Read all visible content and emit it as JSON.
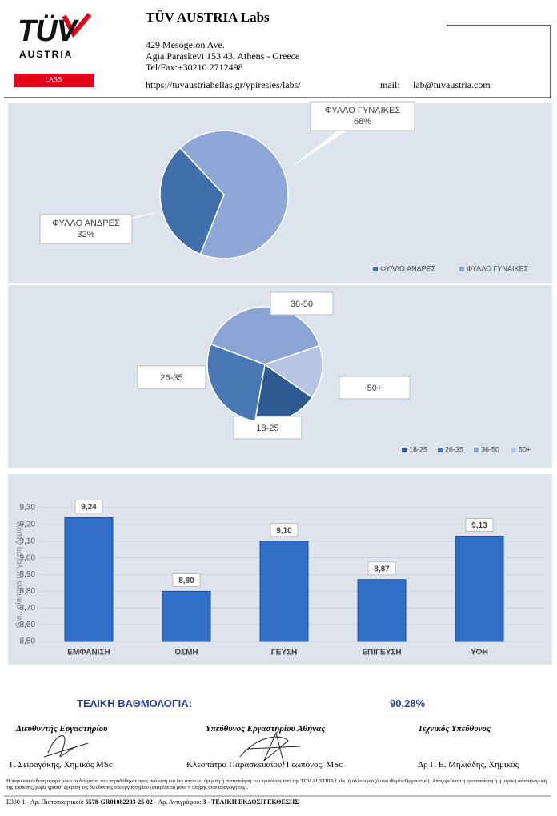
{
  "header": {
    "logo": {
      "brand": "TÜV",
      "sub": "AUSTRIA",
      "badge": "LABS"
    },
    "title": "TÜV AUSTRIA Labs",
    "address": [
      "429 Mesogeion Ave.",
      "Agia Paraskevi 153 43, Athens - Greece",
      "Tel/Fax:+30210 2712498"
    ],
    "url": "https://tuvaustriahellas.gr/ypiresies/labs/",
    "mail_label": "mail:",
    "mail": "lab@tuvaustria.com"
  },
  "chart_data": [
    {
      "type": "pie",
      "categories": [
        "ΦΥΛΛΟ ΑΝΔΡΕΣ",
        "ΦΥΛΛΟ ΓΥΝΑΙΚΕΣ"
      ],
      "values": [
        32,
        68
      ],
      "value_labels": [
        "32%",
        "68%"
      ],
      "colors": [
        "#416fa9",
        "#8ea7d6"
      ],
      "legend": "bottom-right"
    },
    {
      "type": "pie",
      "categories": [
        "18-25",
        "26-35",
        "36-50",
        "50+"
      ],
      "values": [
        18,
        28,
        39,
        15
      ],
      "colors": [
        "#2f5b93",
        "#4977b4",
        "#8ba4d3",
        "#b7c4e3"
      ],
      "legend": "bottom-right"
    },
    {
      "type": "bar",
      "categories": [
        "ΕΜΦΑΝΙΣΗ",
        "ΟΣΜΗ",
        "ΓΕΥΣΗ",
        "ΕΠΙΓΕΥΣΗ",
        "ΥΦΗ"
      ],
      "values": [
        9.24,
        8.8,
        9.1,
        8.87,
        9.13
      ],
      "value_labels": [
        "9,24",
        "8,80",
        "9,10",
        "8,87",
        "9,13"
      ],
      "color": "#2f6fc8",
      "y_label": "Gia...giannas με γεύση Λεμόνι",
      "ylim": [
        8.5,
        9.3
      ],
      "yticks": [
        {
          "value": 8.5,
          "label": "8,50"
        },
        {
          "value": 8.6,
          "label": "8,60"
        },
        {
          "value": 8.7,
          "label": "8,70"
        },
        {
          "value": 8.8,
          "label": "8,80"
        },
        {
          "value": 8.9,
          "label": "8,90"
        },
        {
          "value": 9.0,
          "label": "9,00"
        },
        {
          "value": 9.1,
          "label": "9,10"
        },
        {
          "value": 9.2,
          "label": "9,20"
        },
        {
          "value": 9.3,
          "label": "9,30"
        }
      ],
      "grid": true
    }
  ],
  "score": {
    "label": "ΤΕΛΙΚΗ ΒΑΘΜΟΛΟΓΙΑ:",
    "value": "90,28%"
  },
  "signatures": [
    {
      "role": "Διευθυντής Εργαστηρίου",
      "name": "Γ. Σειραγάκης, Χημικός MSc"
    },
    {
      "role": "Υπεύθυνος Εργαστηρίου Αθήνας",
      "name": "Κλεοπάτρα Παρασκευαίου, Γεωπόνος, MSc"
    },
    {
      "role": "Τεχνικός Υπεύθυνος",
      "name": "Δρ Γ. Ε. Μηλιάδης, Χημικός"
    }
  ],
  "footer": {
    "disclaimer": "Η παρούσα έκθεση αφορά μόνο τα δείγματα, που παραδόθηκαν προς ανάλυση και δεν αποτελεί έγκριση ή πιστοποίηση του προϊόντος από την TÜV AUSTRIA Labs (ή άλλο σχετιζόμενο Φορέα/Οργανισμό). Απαγορεύεται η τροποποίηση ή η μερική αναπαραγωγή της Έκθεσης, χωρίς γραπτή έγκριση της διεύθυνσης του εργαστηρίου (επιτρέπεται μόνο η πλήρης αναπαραγωγή της).",
    "code": "Ε330-1  -  Αρ. Πιστοποιητικού:",
    "certificate": "5578-GR01082203-25-02",
    "copy_label": "-  Αρ. Αντιγράφου:",
    "copy": "3  -  ΤΕΛΙΚΗ ΕΚΔΟΣΗ ΕΚΘΕΣΗΣ"
  }
}
